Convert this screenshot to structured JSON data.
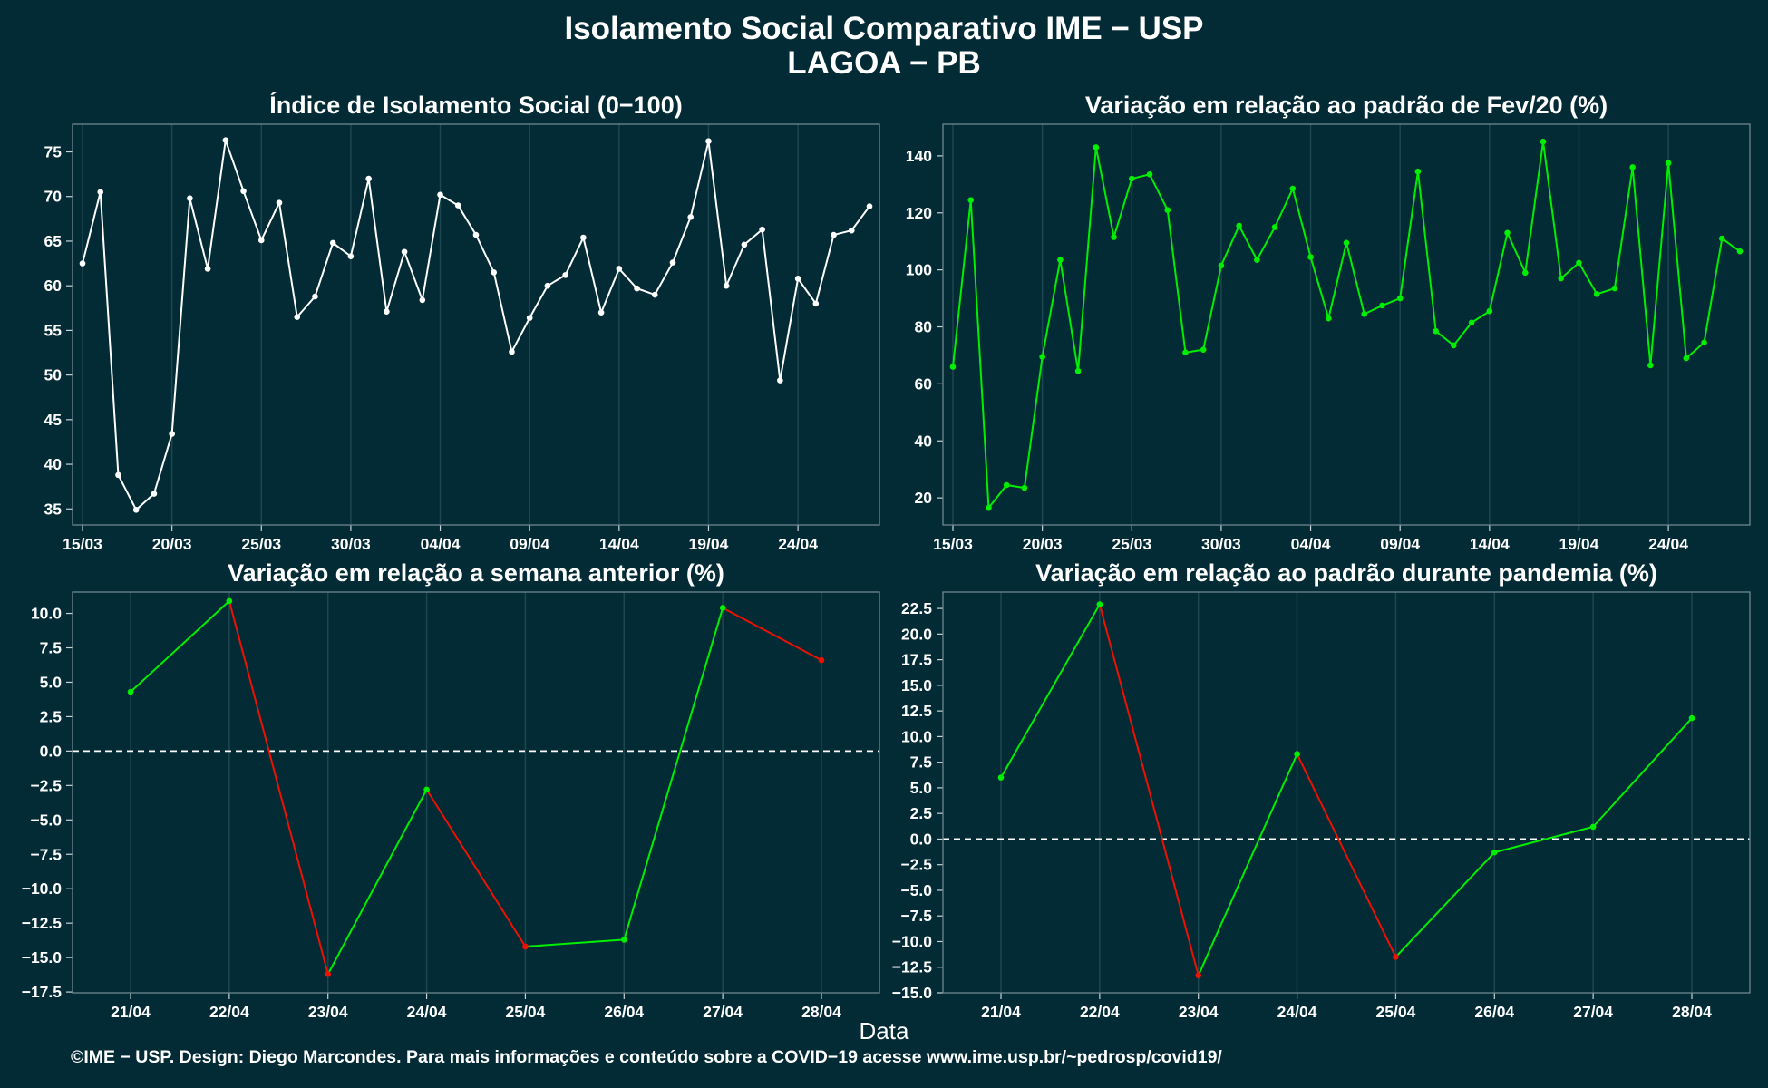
{
  "title_line1": "Isolamento Social Comparativo IME − USP",
  "title_line2": "LAGOA − PB",
  "xlabel": "Data",
  "footer": "©IME − USP. Design: Diego Marcondes. Para mais informações e conteúdo sobre a COVID−19 acesse www.ime.usp.br/~pedrosp/covid19/",
  "colors": {
    "background": "#022b36",
    "white_series": "#ffffff",
    "green": "#00ee00",
    "red": "#ee1100",
    "zero_line": "#ffffff"
  },
  "chart_data": [
    {
      "type": "line",
      "title": "Índice de Isolamento Social (0−100)",
      "x": [
        "15/03",
        "16/03",
        "17/03",
        "18/03",
        "19/03",
        "20/03",
        "21/03",
        "22/03",
        "23/03",
        "24/03",
        "25/03",
        "26/03",
        "27/03",
        "28/03",
        "29/03",
        "30/03",
        "31/03",
        "01/04",
        "02/04",
        "03/04",
        "04/04",
        "05/04",
        "06/04",
        "07/04",
        "08/04",
        "09/04",
        "10/04",
        "11/04",
        "12/04",
        "13/04",
        "14/04",
        "15/04",
        "16/04",
        "17/04",
        "18/04",
        "19/04",
        "20/04",
        "21/04",
        "22/04",
        "23/04",
        "24/04",
        "25/04",
        "26/04",
        "27/04",
        "28/04"
      ],
      "x_ticks": [
        "15/03",
        "20/03",
        "25/03",
        "30/03",
        "04/04",
        "09/04",
        "14/04",
        "19/04",
        "24/04"
      ],
      "y_ticks": [
        35,
        40,
        45,
        50,
        55,
        60,
        65,
        70,
        75
      ],
      "ylim": [
        33.2,
        78.1
      ],
      "values": [
        62.5,
        70.5,
        38.8,
        34.9,
        36.7,
        43.4,
        69.8,
        61.9,
        76.3,
        70.6,
        65.1,
        69.3,
        56.5,
        58.8,
        64.8,
        63.3,
        72.0,
        57.1,
        63.8,
        58.4,
        70.2,
        69.0,
        65.7,
        61.5,
        52.6,
        56.4,
        60.0,
        61.2,
        65.4,
        57.0,
        61.9,
        59.7,
        59.0,
        62.6,
        67.7,
        76.2,
        60.0,
        64.6,
        66.3,
        49.4,
        60.8,
        58.0,
        65.7,
        66.2,
        68.9
      ],
      "color": "#ffffff"
    },
    {
      "type": "line",
      "title": "Variação em relação ao padrão de Fev/20 (%)",
      "x": [
        "15/03",
        "16/03",
        "17/03",
        "18/03",
        "19/03",
        "20/03",
        "21/03",
        "22/03",
        "23/03",
        "24/03",
        "25/03",
        "26/03",
        "27/03",
        "28/03",
        "29/03",
        "30/03",
        "31/03",
        "01/04",
        "02/04",
        "03/04",
        "04/04",
        "05/04",
        "06/04",
        "07/04",
        "08/04",
        "09/04",
        "10/04",
        "11/04",
        "12/04",
        "13/04",
        "14/04",
        "15/04",
        "16/04",
        "17/04",
        "18/04",
        "19/04",
        "20/04",
        "21/04",
        "22/04",
        "23/04",
        "24/04",
        "25/04",
        "26/04",
        "27/04",
        "28/04"
      ],
      "x_ticks": [
        "15/03",
        "20/03",
        "25/03",
        "30/03",
        "04/04",
        "09/04",
        "14/04",
        "19/04",
        "24/04"
      ],
      "y_ticks": [
        20,
        40,
        60,
        80,
        100,
        120,
        140
      ],
      "ylim": [
        10.5,
        151.1
      ],
      "values": [
        66,
        124.5,
        16.5,
        24.5,
        23.5,
        69.5,
        103.5,
        64.5,
        143,
        111.5,
        132,
        133.5,
        121,
        71,
        72,
        101.5,
        115.5,
        103.5,
        115,
        128.5,
        104.5,
        83,
        109.5,
        84.5,
        87.5,
        90,
        134.5,
        78.5,
        73.5,
        81.5,
        85.5,
        113,
        99,
        145,
        97,
        102.5,
        91.5,
        93.5,
        136,
        66.5,
        137.5,
        69,
        74.5,
        111,
        106.5
      ],
      "color": "#00ee00"
    },
    {
      "type": "line",
      "title": "Variação em relação a semana anterior (%)",
      "x": [
        "21/04",
        "22/04",
        "23/04",
        "24/04",
        "25/04",
        "26/04",
        "27/04",
        "28/04"
      ],
      "y_ticks": [
        -17.5,
        -15.0,
        -12.5,
        -10.0,
        -7.5,
        -5.0,
        -2.5,
        0.0,
        2.5,
        5.0,
        7.5,
        10.0
      ],
      "ylim": [
        -17.56,
        11.55
      ],
      "values": [
        4.3,
        10.9,
        -16.2,
        -2.8,
        -14.2,
        -13.7,
        10.4,
        6.6
      ],
      "reference_line": 0,
      "color_positive": "#00ee00",
      "color_negative": "#ee1100"
    },
    {
      "type": "line",
      "title": "Variação em relação ao padrão durante pandemia (%)",
      "x": [
        "21/04",
        "22/04",
        "23/04",
        "24/04",
        "25/04",
        "26/04",
        "27/04",
        "28/04"
      ],
      "y_ticks": [
        -15.0,
        -12.5,
        -10.0,
        -7.5,
        -5.0,
        -2.5,
        0.0,
        2.5,
        5.0,
        7.5,
        10.0,
        12.5,
        15.0,
        17.5,
        20.0,
        22.5
      ],
      "ylim": [
        -15.0,
        24.1
      ],
      "values": [
        6.0,
        22.9,
        -13.3,
        8.3,
        -11.5,
        -1.3,
        1.2,
        11.8
      ],
      "reference_line": 0,
      "color_positive": "#00ee00",
      "color_negative": "#ee1100"
    }
  ]
}
